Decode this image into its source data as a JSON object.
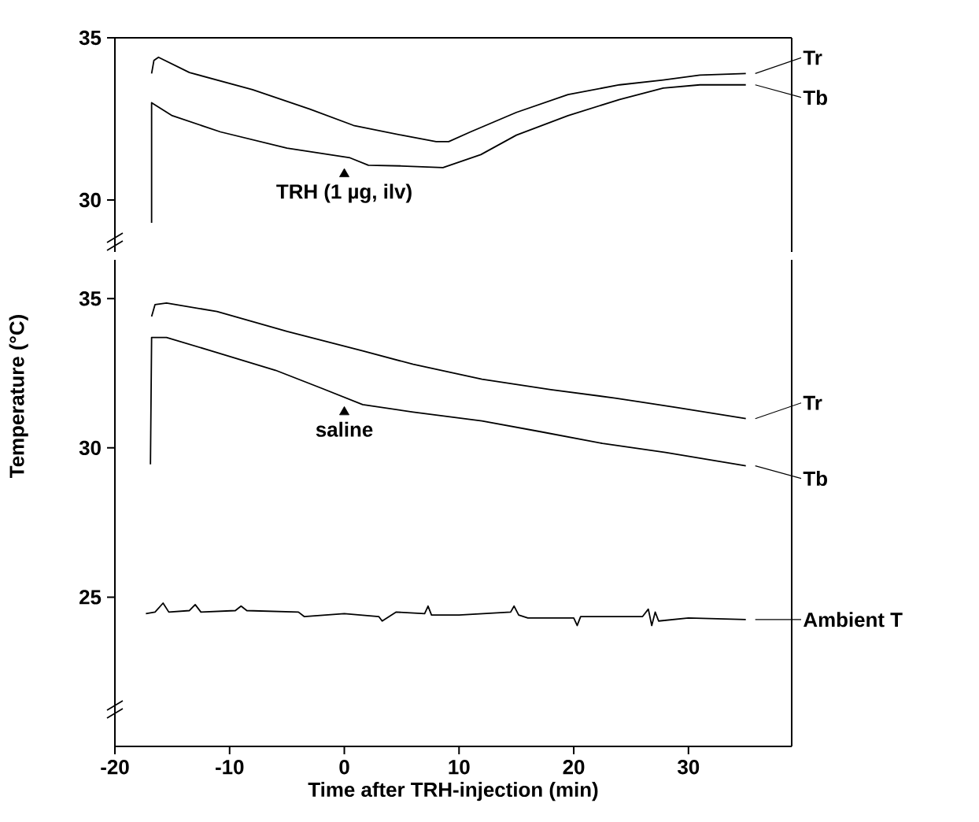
{
  "chart_data": [
    {
      "type": "line",
      "xlim": [
        -20,
        39
      ],
      "ylim": [
        28.4,
        35
      ],
      "yticks": [
        30,
        35
      ],
      "tick_labels": "y",
      "line_style": "solid",
      "marker": "none",
      "grid": false,
      "legend": "right",
      "series": [
        {
          "name": "Tr",
          "color": "#000000",
          "x": [
            -16.8,
            -16.6,
            -16.2,
            -13.5,
            -8,
            -3,
            0.8,
            5,
            8,
            9.1,
            11,
            15,
            19.5,
            24,
            27.8,
            31,
            35
          ],
          "values": [
            33.9,
            34.3,
            34.4,
            33.93,
            33.4,
            32.8,
            32.3,
            32.0,
            31.8,
            31.8,
            32.1,
            32.7,
            33.25,
            33.55,
            33.7,
            33.85,
            33.9
          ]
        },
        {
          "type": "scatter",
          "marker": "triangle",
          "color": "#000000",
          "x": [
            0
          ],
          "values": [
            30.8
          ]
        },
        {
          "name": "Tb",
          "color": "#000000",
          "x": [
            -16.8,
            -16.8,
            -15,
            -10.8,
            -5,
            0.5,
            2.1,
            5,
            8.6,
            11.9,
            15,
            19.5,
            24,
            27.8,
            31,
            35
          ],
          "values": [
            29.3,
            33.0,
            32.6,
            32.1,
            31.6,
            31.3,
            31.07,
            31.05,
            31.0,
            31.4,
            32.0,
            32.6,
            33.1,
            33.45,
            33.55,
            33.55
          ]
        }
      ],
      "annotations": [
        "TRH (1 µg, ilv)"
      ]
    },
    {
      "type": "line",
      "xlim": [
        -20,
        39
      ],
      "ylim": [
        20,
        36.3
      ],
      "xticks": [
        -20,
        -10,
        0,
        10,
        20,
        30
      ],
      "yticks": [
        25,
        30,
        35
      ],
      "xlabel": "Time after TRH-injection (min)",
      "ylabel": "Temperature (°C)",
      "line_style": "solid",
      "marker": "none",
      "grid": false,
      "legend": "right",
      "series": [
        {
          "name": "Tr",
          "color": "#000000",
          "x": [
            -16.8,
            -16.5,
            -15.5,
            -11.1,
            -5,
            1.6,
            6,
            12,
            18,
            23.6,
            29,
            35
          ],
          "values": [
            34.4,
            34.8,
            34.85,
            34.57,
            33.9,
            33.25,
            32.8,
            32.3,
            31.95,
            31.67,
            31.35,
            30.98
          ]
        },
        {
          "type": "scatter",
          "marker": "triangle",
          "color": "#000000",
          "x": [
            0
          ],
          "values": [
            31.2
          ]
        },
        {
          "name": "Tb",
          "color": "#000000",
          "x": [
            -16.9,
            -16.8,
            -15.5,
            -11.6,
            -6,
            -2,
            1.6,
            6,
            12,
            17,
            22.5,
            28,
            35
          ],
          "values": [
            29.45,
            33.7,
            33.7,
            33.25,
            32.6,
            32.0,
            31.45,
            31.2,
            30.9,
            30.55,
            30.15,
            29.85,
            29.4
          ]
        },
        {
          "name": "Ambient T",
          "color": "#000000",
          "x": [
            -17.3,
            -16.5,
            -15.8,
            -15.3,
            -13.5,
            -13,
            -12.5,
            -9.5,
            -9,
            -8.5,
            -4,
            -3.5,
            0,
            3,
            3.3,
            4.5,
            7,
            7.3,
            7.6,
            10,
            14.5,
            14.8,
            15.2,
            16,
            20,
            20.3,
            20.6,
            26,
            26.5,
            26.8,
            27.1,
            27.4,
            30,
            35
          ],
          "values": [
            24.45,
            24.5,
            24.8,
            24.5,
            24.55,
            24.75,
            24.5,
            24.55,
            24.7,
            24.55,
            24.5,
            24.35,
            24.45,
            24.35,
            24.2,
            24.5,
            24.45,
            24.7,
            24.4,
            24.4,
            24.5,
            24.7,
            24.4,
            24.3,
            24.3,
            24.05,
            24.35,
            24.35,
            24.6,
            24.05,
            24.5,
            24.2,
            24.3,
            24.25
          ]
        }
      ],
      "annotations": [
        "saline"
      ]
    }
  ]
}
